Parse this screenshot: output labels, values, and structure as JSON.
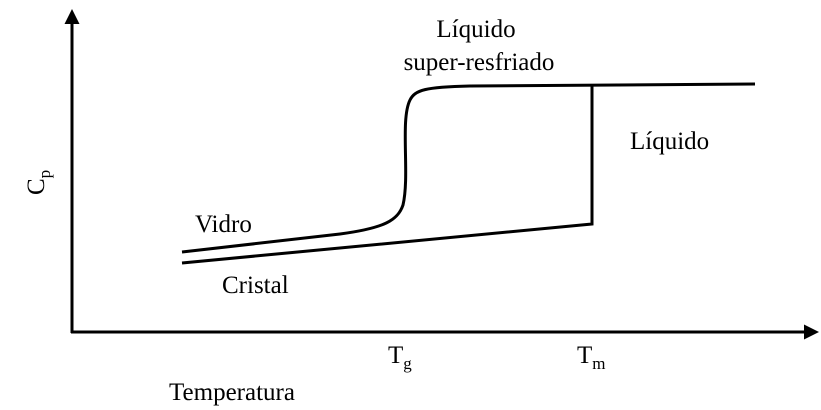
{
  "diagram": {
    "labels": {
      "supercooled_line1": "Líquido",
      "supercooled_line2": "super-resfriado",
      "liquid": "Líquido",
      "glass": "Vidro",
      "crystal": "Cristal"
    },
    "y_axis": {
      "base": "C",
      "sub": "p"
    },
    "x_axis": {
      "label": "Temperatura"
    },
    "markers": [
      {
        "base": "T",
        "sub": "g"
      },
      {
        "base": "T",
        "sub": "m"
      }
    ]
  }
}
